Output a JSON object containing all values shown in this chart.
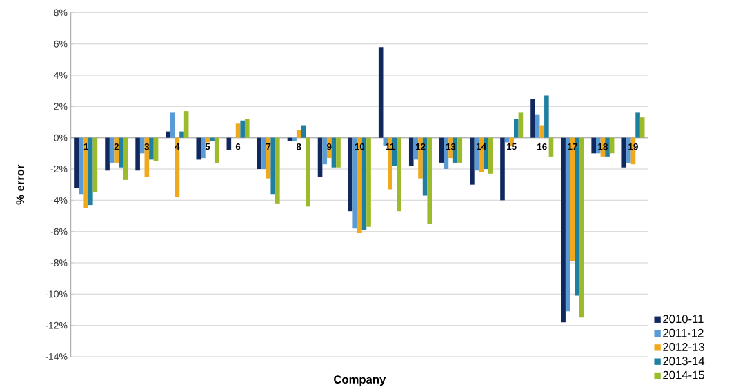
{
  "chart_data": {
    "type": "bar",
    "xlabel": "Company",
    "ylabel": "% error",
    "categories": [
      "1",
      "2",
      "3",
      "4",
      "5",
      "6",
      "7",
      "8",
      "9",
      "10",
      "11",
      "12",
      "13",
      "14",
      "15",
      "16",
      "17",
      "18",
      "19"
    ],
    "series": [
      {
        "name": "2010-11",
        "color": "#10285e",
        "values": [
          -3.2,
          -2.1,
          -2.1,
          0.4,
          -1.4,
          -0.8,
          -2.0,
          -0.2,
          -2.5,
          -4.7,
          5.8,
          -1.8,
          -1.6,
          -3.0,
          -4.0,
          2.5,
          -11.8,
          -1.0,
          -1.9
        ]
      },
      {
        "name": "2011-12",
        "color": "#5b9bd5",
        "values": [
          -3.6,
          -1.6,
          -1.0,
          1.6,
          -1.3,
          0,
          -2.0,
          -0.2,
          -1.7,
          -5.8,
          -0.5,
          -1.4,
          -2.0,
          -2.1,
          -0.3,
          1.5,
          -11.1,
          -1.0,
          -1.6
        ]
      },
      {
        "name": "2012-13",
        "color": "#f0a91c",
        "values": [
          -4.5,
          -1.6,
          -2.5,
          -3.8,
          -0.3,
          0.9,
          -2.6,
          0.5,
          -1.3,
          -6.1,
          -3.3,
          -2.6,
          -1.3,
          -2.2,
          -0.5,
          0.8,
          -7.9,
          -1.2,
          -1.7
        ]
      },
      {
        "name": "2013-14",
        "color": "#1f7fa0",
        "values": [
          -4.3,
          -1.9,
          -1.4,
          0.4,
          -0.2,
          1.1,
          -3.6,
          0.8,
          -1.9,
          -5.9,
          -1.8,
          -3.7,
          -1.6,
          -2.0,
          1.2,
          2.7,
          -10.1,
          -1.2,
          1.6
        ]
      },
      {
        "name": "2014-15",
        "color": "#9bbb2a",
        "values": [
          -3.5,
          -2.7,
          -1.5,
          1.7,
          -1.6,
          1.2,
          -4.2,
          -4.4,
          -1.9,
          -5.7,
          -4.7,
          -5.5,
          -1.6,
          -2.3,
          1.6,
          -1.2,
          -11.5,
          -1.0,
          1.3
        ]
      }
    ],
    "ylim": [
      -14,
      8
    ],
    "yticks": [
      {
        "value": -14,
        "label": "-14%"
      },
      {
        "value": -12,
        "label": "-12%"
      },
      {
        "value": -10,
        "label": "-10%"
      },
      {
        "value": -8,
        "label": "-8%"
      },
      {
        "value": -6,
        "label": "-6%"
      },
      {
        "value": -4,
        "label": "-4%"
      },
      {
        "value": -2,
        "label": "-2%"
      },
      {
        "value": 0,
        "label": "0%"
      },
      {
        "value": 2,
        "label": "2%"
      },
      {
        "value": 4,
        "label": "4%"
      },
      {
        "value": 6,
        "label": "6%"
      },
      {
        "value": 8,
        "label": "8%"
      }
    ],
    "grid": "y",
    "legend": "bottom right"
  }
}
